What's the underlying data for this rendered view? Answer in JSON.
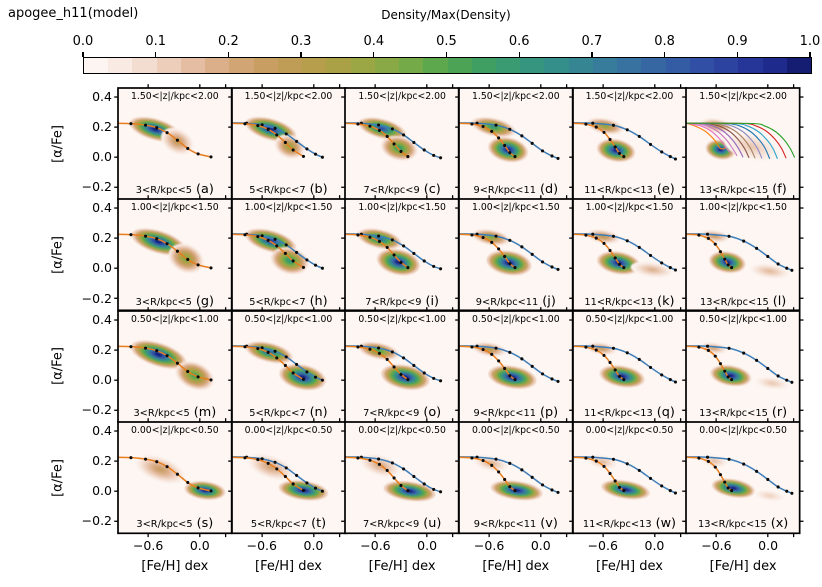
{
  "title": "apogee_h11(model)",
  "colorbar": {
    "label": "Density/Max(Density)",
    "tick_labels": [
      "0.0",
      "0.1",
      "0.2",
      "0.3",
      "0.4",
      "0.5",
      "0.6",
      "0.7",
      "0.8",
      "0.9",
      "1.0"
    ],
    "stops": [
      [
        0.0,
        "#fefaf8"
      ],
      [
        0.05,
        "#f9ebe4"
      ],
      [
        0.1,
        "#f0d6c6"
      ],
      [
        0.15,
        "#e4bda2"
      ],
      [
        0.2,
        "#d6a87e"
      ],
      [
        0.25,
        "#c99e62"
      ],
      [
        0.3,
        "#bc9c50"
      ],
      [
        0.35,
        "#aaa146"
      ],
      [
        0.4,
        "#93a845"
      ],
      [
        0.45,
        "#74aa48"
      ],
      [
        0.5,
        "#52a54e"
      ],
      [
        0.55,
        "#3f9f62"
      ],
      [
        0.6,
        "#379878"
      ],
      [
        0.65,
        "#348e89"
      ],
      [
        0.7,
        "#378198"
      ],
      [
        0.75,
        "#3872a0"
      ],
      [
        0.8,
        "#3562a5"
      ],
      [
        0.85,
        "#3150a5"
      ],
      [
        0.9,
        "#2a3c9e"
      ],
      [
        0.95,
        "#1e2a8c"
      ],
      [
        1.0,
        "#0f1663"
      ]
    ],
    "n_segments": 30
  },
  "axes": {
    "xlabel": "[Fe/H] dex",
    "ylabel": "[α/Fe]",
    "xlim": [
      -0.95,
      0.37
    ],
    "ylim": [
      -0.28,
      0.46
    ],
    "xtick_values": [
      -0.6,
      0.0
    ],
    "xtick_labels": [
      "−0.6",
      "0.0"
    ],
    "xtick_minor": [
      0.3
    ],
    "ytick_values": [
      0.4,
      0.2,
      0.0,
      -0.2
    ],
    "ytick_labels": [
      "0.4",
      "0.2",
      "0.0",
      "−0.2"
    ]
  },
  "chart_data": {
    "type": "heatmap",
    "title": "apogee_h11(model)",
    "rows": [
      {
        "z_label": "1.50<|z|/kpc<2.00"
      },
      {
        "z_label": "1.00<|z|/kpc<1.50"
      },
      {
        "z_label": "0.50<|z|/kpc<1.00"
      },
      {
        "z_label": "0.00<|z|/kpc<0.50"
      }
    ],
    "cols": [
      {
        "r_label": "3<R/kpc<5"
      },
      {
        "r_label": "5<R/kpc<7"
      },
      {
        "r_label": "7<R/kpc<9"
      },
      {
        "r_label": "9<R/kpc<11"
      },
      {
        "r_label": "11<R/kpc<13"
      },
      {
        "r_label": "13<R/kpc<15"
      }
    ],
    "track_colors": {
      "orange": "#e87d1e",
      "blue": "#3e7db8",
      "dot": "#0a0a0a"
    },
    "tracks": {
      "orange": [
        [
          [
            -0.95,
            0.225
          ],
          [
            -0.8,
            0.223
          ],
          [
            -0.63,
            0.213
          ],
          [
            -0.5,
            0.196
          ],
          [
            -0.38,
            0.163
          ],
          [
            -0.26,
            0.113
          ],
          [
            -0.14,
            0.058
          ],
          [
            -0.02,
            0.022
          ],
          [
            0.13,
            0.002
          ]
        ],
        [
          [
            -0.95,
            0.225
          ],
          [
            -0.8,
            0.222
          ],
          [
            -0.65,
            0.21
          ],
          [
            -0.53,
            0.185
          ],
          [
            -0.43,
            0.148
          ],
          [
            -0.33,
            0.098
          ],
          [
            -0.24,
            0.048
          ],
          [
            -0.12,
            0.005
          ]
        ],
        [
          [
            -0.95,
            0.225
          ],
          [
            -0.8,
            0.221
          ],
          [
            -0.66,
            0.206
          ],
          [
            -0.55,
            0.178
          ],
          [
            -0.46,
            0.138
          ],
          [
            -0.38,
            0.088
          ],
          [
            -0.3,
            0.038
          ],
          [
            -0.22,
            0.004
          ]
        ],
        [
          [
            -0.95,
            0.225
          ],
          [
            -0.8,
            0.221
          ],
          [
            -0.67,
            0.204
          ],
          [
            -0.57,
            0.172
          ],
          [
            -0.49,
            0.128
          ],
          [
            -0.42,
            0.078
          ],
          [
            -0.36,
            0.03
          ],
          [
            -0.3,
            0.004
          ]
        ],
        [
          [
            -0.95,
            0.225
          ],
          [
            -0.8,
            0.22
          ],
          [
            -0.68,
            0.2
          ],
          [
            -0.59,
            0.165
          ],
          [
            -0.52,
            0.118
          ],
          [
            -0.46,
            0.068
          ],
          [
            -0.41,
            0.025
          ],
          [
            -0.36,
            0.004
          ]
        ],
        [
          [
            -0.95,
            0.225
          ],
          [
            -0.8,
            0.22
          ],
          [
            -0.69,
            0.198
          ],
          [
            -0.61,
            0.16
          ],
          [
            -0.55,
            0.11
          ],
          [
            -0.5,
            0.06
          ],
          [
            -0.46,
            0.022
          ],
          [
            -0.42,
            0.004
          ]
        ]
      ],
      "blue": [
        [
          [
            -0.95,
            0.228
          ],
          [
            -0.78,
            0.226
          ],
          [
            -0.6,
            0.215
          ],
          [
            -0.45,
            0.192
          ],
          [
            -0.32,
            0.155
          ],
          [
            -0.2,
            0.105
          ],
          [
            -0.08,
            0.055
          ],
          [
            0.02,
            0.02
          ],
          [
            0.1,
            0.0
          ]
        ],
        [
          [
            -0.95,
            0.228
          ],
          [
            -0.76,
            0.226
          ],
          [
            -0.56,
            0.214
          ],
          [
            -0.4,
            0.188
          ],
          [
            -0.27,
            0.148
          ],
          [
            -0.15,
            0.098
          ],
          [
            -0.03,
            0.048
          ],
          [
            0.08,
            0.012
          ],
          [
            0.16,
            -0.004
          ]
        ],
        [
          [
            -0.95,
            0.228
          ],
          [
            -0.74,
            0.226
          ],
          [
            -0.52,
            0.213
          ],
          [
            -0.36,
            0.185
          ],
          [
            -0.22,
            0.142
          ],
          [
            -0.1,
            0.092
          ],
          [
            0.02,
            0.042
          ],
          [
            0.13,
            0.008
          ],
          [
            0.2,
            -0.008
          ]
        ],
        [
          [
            -0.95,
            0.228
          ],
          [
            -0.72,
            0.226
          ],
          [
            -0.48,
            0.212
          ],
          [
            -0.32,
            0.182
          ],
          [
            -0.18,
            0.138
          ],
          [
            -0.05,
            0.085
          ],
          [
            0.08,
            0.035
          ],
          [
            0.18,
            0.004
          ],
          [
            0.24,
            -0.012
          ]
        ],
        [
          [
            -0.95,
            0.228
          ],
          [
            -0.7,
            0.226
          ],
          [
            -0.45,
            0.212
          ],
          [
            -0.28,
            0.18
          ],
          [
            -0.13,
            0.132
          ],
          [
            0.0,
            0.078
          ],
          [
            0.12,
            0.028
          ],
          [
            0.22,
            0.0
          ],
          [
            0.28,
            -0.014
          ]
        ]
      ]
    },
    "fan": {
      "curves": [
        {
          "color": "#ff7f0e",
          "end": [
            -0.5,
            0.06
          ]
        },
        {
          "color": "#e377c2",
          "end": [
            -0.43,
            0.03
          ]
        },
        {
          "color": "#cc79c0",
          "end": [
            -0.36,
            0.012
          ]
        },
        {
          "color": "#9467bd",
          "end": [
            -0.29,
            0.002
          ]
        },
        {
          "color": "#8c564b",
          "end": [
            -0.22,
            -0.002
          ]
        },
        {
          "color": "#a98467",
          "end": [
            -0.15,
            -0.004
          ]
        },
        {
          "color": "#8e8cc2",
          "end": [
            -0.07,
            -0.006
          ]
        },
        {
          "color": "#1f77b4",
          "end": [
            0.02,
            -0.008
          ]
        },
        {
          "color": "#2aa5c9",
          "end": [
            0.11,
            -0.008
          ]
        },
        {
          "color": "#d62728",
          "end": [
            0.21,
            -0.004
          ]
        },
        {
          "color": "#2ca02c",
          "end": [
            0.31,
            0.0
          ]
        }
      ]
    },
    "panels": [
      {
        "letter": "(a)",
        "blobs": [
          [
            -0.52,
            0.185,
            0.3,
            0.068,
            16,
            1.0
          ],
          [
            -0.26,
            0.105,
            0.2,
            0.08,
            28,
            0.28
          ]
        ]
      },
      {
        "letter": "(b)",
        "blobs": [
          [
            -0.5,
            0.185,
            0.3,
            0.068,
            16,
            1.0
          ],
          [
            -0.28,
            0.07,
            0.18,
            0.075,
            22,
            0.4
          ]
        ]
      },
      {
        "letter": "(c)",
        "blobs": [
          [
            -0.52,
            0.19,
            0.28,
            0.062,
            15,
            0.88
          ],
          [
            -0.32,
            0.06,
            0.21,
            0.078,
            14,
            0.6
          ]
        ]
      },
      {
        "letter": "(d)",
        "blobs": [
          [
            -0.55,
            0.2,
            0.26,
            0.058,
            13,
            0.62
          ],
          [
            -0.38,
            0.05,
            0.23,
            0.078,
            12,
            1.0
          ]
        ]
      },
      {
        "letter": "(e)",
        "blobs": [
          [
            -0.58,
            0.207,
            0.22,
            0.05,
            11,
            0.42
          ],
          [
            -0.45,
            0.045,
            0.22,
            0.072,
            10,
            1.0
          ]
        ]
      },
      {
        "letter": "(f)",
        "fan": true,
        "blobs": [
          [
            -0.6,
            0.21,
            0.19,
            0.045,
            9,
            0.3
          ],
          [
            -0.55,
            0.05,
            0.17,
            0.062,
            11,
            1.0
          ],
          [
            -0.18,
            0.07,
            0.34,
            0.09,
            16,
            0.13
          ]
        ]
      },
      {
        "letter": "(g)",
        "blobs": [
          [
            -0.48,
            0.175,
            0.32,
            0.072,
            17,
            1.0
          ],
          [
            -0.16,
            0.065,
            0.21,
            0.09,
            26,
            0.45
          ]
        ]
      },
      {
        "letter": "(h)",
        "blobs": [
          [
            -0.5,
            0.18,
            0.3,
            0.068,
            16,
            0.95
          ],
          [
            -0.28,
            0.05,
            0.22,
            0.085,
            16,
            0.62
          ]
        ]
      },
      {
        "letter": "(i)",
        "blobs": [
          [
            -0.55,
            0.195,
            0.26,
            0.06,
            13,
            0.8
          ],
          [
            -0.33,
            0.04,
            0.25,
            0.082,
            13,
            1.0
          ]
        ]
      },
      {
        "letter": "(j)",
        "blobs": [
          [
            -0.58,
            0.205,
            0.22,
            0.05,
            10,
            0.45
          ],
          [
            -0.37,
            0.035,
            0.26,
            0.078,
            10,
            1.0
          ]
        ]
      },
      {
        "letter": "(k)",
        "blobs": [
          [
            -0.6,
            0.21,
            0.2,
            0.045,
            9,
            0.3
          ],
          [
            -0.42,
            0.035,
            0.25,
            0.072,
            10,
            1.0
          ],
          [
            -0.03,
            -0.01,
            0.25,
            0.05,
            8,
            0.18
          ]
        ]
      },
      {
        "letter": "(l)",
        "blobs": [
          [
            -0.62,
            0.213,
            0.18,
            0.04,
            8,
            0.25
          ],
          [
            -0.47,
            0.04,
            0.21,
            0.068,
            10,
            1.0
          ],
          [
            0.02,
            -0.02,
            0.24,
            0.048,
            8,
            0.16
          ]
        ]
      },
      {
        "letter": "(m)",
        "blobs": [
          [
            -0.48,
            0.17,
            0.33,
            0.075,
            18,
            1.0
          ],
          [
            -0.06,
            0.03,
            0.23,
            0.085,
            24,
            0.55
          ]
        ]
      },
      {
        "letter": "(n)",
        "blobs": [
          [
            -0.52,
            0.185,
            0.28,
            0.062,
            14,
            0.8
          ],
          [
            -0.13,
            0.02,
            0.27,
            0.08,
            12,
            1.0
          ]
        ]
      },
      {
        "letter": "(o)",
        "blobs": [
          [
            -0.56,
            0.195,
            0.24,
            0.053,
            12,
            0.55
          ],
          [
            -0.25,
            0.02,
            0.28,
            0.078,
            11,
            1.0
          ]
        ]
      },
      {
        "letter": "(p)",
        "blobs": [
          [
            -0.6,
            0.205,
            0.2,
            0.045,
            9,
            0.33
          ],
          [
            -0.33,
            0.02,
            0.28,
            0.072,
            10,
            1.0
          ]
        ]
      },
      {
        "letter": "(q)",
        "blobs": [
          [
            -0.62,
            0.21,
            0.18,
            0.04,
            8,
            0.27
          ],
          [
            -0.38,
            0.025,
            0.26,
            0.068,
            10,
            1.0
          ]
        ]
      },
      {
        "letter": "(r)",
        "blobs": [
          [
            -0.63,
            0.213,
            0.16,
            0.038,
            8,
            0.22
          ],
          [
            -0.43,
            0.03,
            0.235,
            0.065,
            10,
            1.0
          ],
          [
            0.05,
            -0.02,
            0.21,
            0.042,
            8,
            0.13
          ]
        ]
      },
      {
        "letter": "(s)",
        "blobs": [
          [
            -0.46,
            0.145,
            0.3,
            0.08,
            20,
            0.25
          ],
          [
            0.06,
            0.005,
            0.235,
            0.058,
            7,
            1.0
          ]
        ]
      },
      {
        "letter": "(t)",
        "blobs": [
          [
            -0.5,
            0.16,
            0.28,
            0.075,
            19,
            0.22
          ],
          [
            -0.12,
            0.005,
            0.285,
            0.062,
            8,
            1.0
          ]
        ]
      },
      {
        "letter": "(u)",
        "blobs": [
          [
            -0.54,
            0.17,
            0.25,
            0.068,
            17,
            0.2
          ],
          [
            -0.2,
            0.0,
            0.3,
            0.062,
            8,
            1.0
          ]
        ]
      },
      {
        "letter": "(v)",
        "blobs": [
          [
            -0.58,
            0.185,
            0.21,
            0.052,
            12,
            0.18
          ],
          [
            -0.28,
            0.005,
            0.3,
            0.06,
            8,
            1.0
          ]
        ]
      },
      {
        "letter": "(w)",
        "blobs": [
          [
            -0.61,
            0.195,
            0.18,
            0.045,
            10,
            0.16
          ],
          [
            -0.34,
            0.01,
            0.28,
            0.058,
            9,
            1.0
          ]
        ]
      },
      {
        "letter": "(x)",
        "blobs": [
          [
            -0.62,
            0.2,
            0.16,
            0.04,
            9,
            0.15
          ],
          [
            -0.4,
            0.02,
            0.25,
            0.058,
            10,
            1.0
          ],
          [
            0.02,
            -0.03,
            0.19,
            0.038,
            8,
            0.11
          ]
        ]
      }
    ]
  }
}
